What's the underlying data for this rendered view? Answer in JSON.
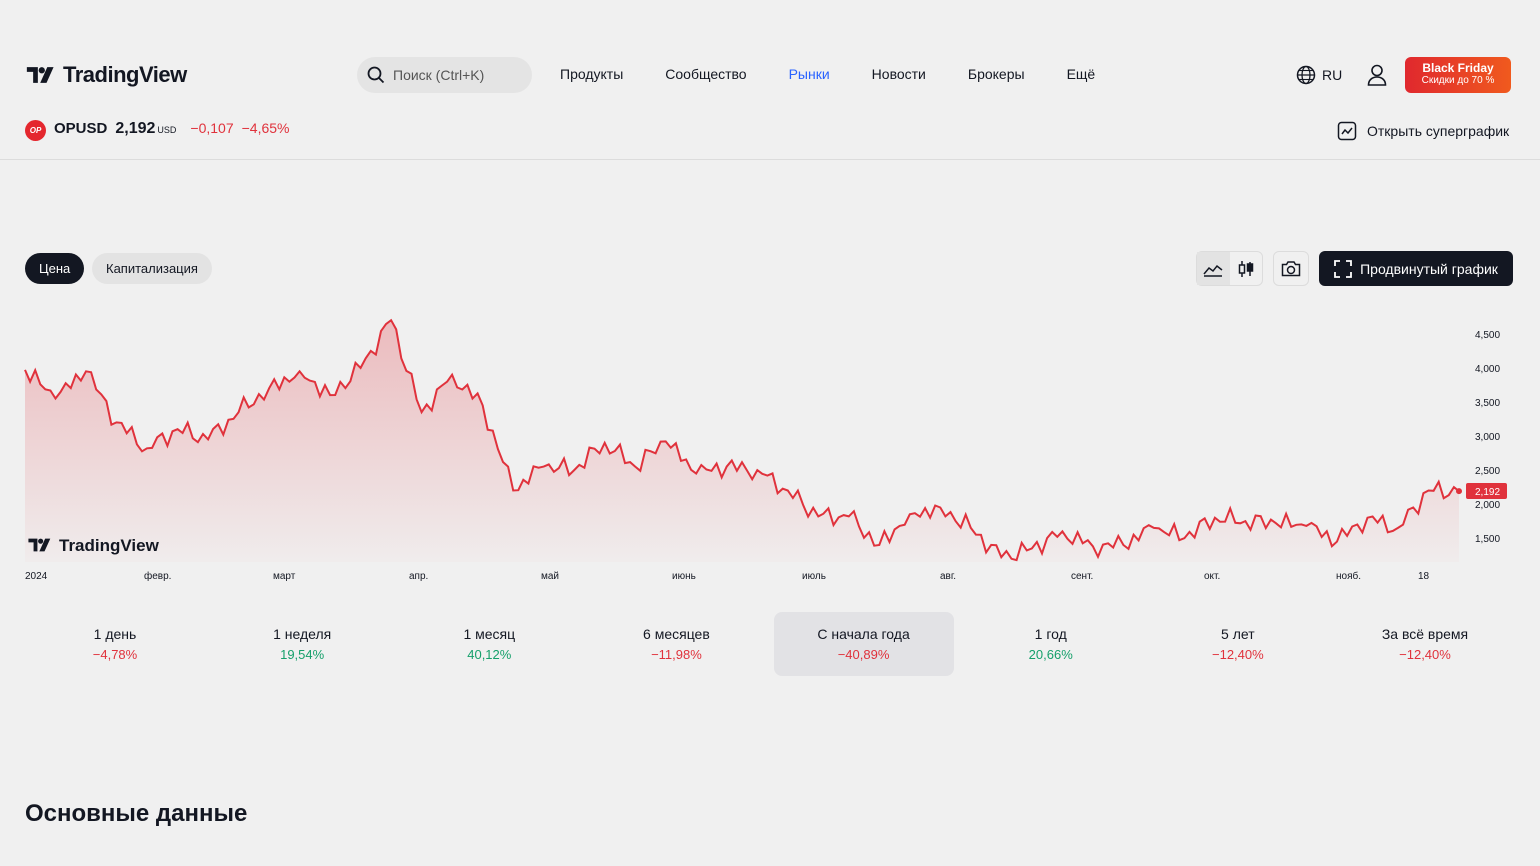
{
  "header": {
    "logo_text": "TradingView",
    "search_placeholder": "Поиск (Ctrl+K)",
    "nav": [
      "Продукты",
      "Сообщество",
      "Рынки",
      "Новости",
      "Брокеры",
      "Ещё"
    ],
    "active_nav": "Рынки",
    "language": "RU",
    "promo_title": "Black Friday",
    "promo_subtitle": "Скидки до 70 %"
  },
  "symbol": {
    "badge": "OP",
    "ticker": "OPUSD",
    "price": "2,192",
    "currency": "USD",
    "change_abs": "−0,107",
    "change_pct": "−4,65%",
    "open_supergraph": "Открыть суперграфик"
  },
  "chart_tabs": {
    "price": "Цена",
    "market_cap": "Капитализация"
  },
  "toolbar": {
    "advanced_chart": "Продвинутый график"
  },
  "chart_data": {
    "type": "area",
    "watermark": "TradingView",
    "x_ticks": [
      "2024",
      "февр.",
      "март",
      "апр.",
      "май",
      "июнь",
      "июль",
      "авг.",
      "сент.",
      "окт.",
      "нояб.",
      "18"
    ],
    "y_ticks": [
      "4,500",
      "4,000",
      "3,500",
      "3,000",
      "2,500",
      "2,000",
      "1,500"
    ],
    "ylim": [
      1.15,
      4.85
    ],
    "last_price_label": "2,192",
    "line_color": "#e0323c",
    "series": [
      {
        "x_weeks": [
          0,
          1,
          2,
          3,
          4,
          5,
          6,
          7,
          8,
          9,
          10,
          11,
          12,
          13,
          14,
          15,
          16,
          17,
          18,
          19,
          20,
          21,
          22,
          23,
          24,
          25,
          26,
          27,
          28,
          29,
          30,
          31,
          32,
          33,
          34,
          35,
          36,
          37,
          38,
          39,
          40,
          41,
          42,
          43,
          44,
          45,
          46,
          47
        ],
        "values": [
          3.97,
          3.55,
          3.95,
          3.2,
          2.82,
          3.1,
          2.95,
          3.35,
          3.7,
          3.95,
          3.6,
          4.0,
          4.7,
          3.35,
          3.9,
          3.45,
          2.2,
          2.55,
          2.5,
          2.9,
          2.55,
          2.92,
          2.45,
          2.55,
          2.5,
          2.2,
          1.82,
          1.82,
          1.4,
          1.85,
          1.95,
          1.65,
          1.22,
          1.35,
          1.6,
          1.38,
          1.4,
          1.65,
          1.5,
          1.8,
          1.75,
          1.72,
          1.68,
          1.45,
          1.8,
          1.65,
          2.2,
          2.19
        ]
      }
    ]
  },
  "periods": [
    {
      "label": "1 день",
      "value": "−4,78%",
      "dir": "neg"
    },
    {
      "label": "1 неделя",
      "value": "19,54%",
      "dir": "pos"
    },
    {
      "label": "1 месяц",
      "value": "40,12%",
      "dir": "pos"
    },
    {
      "label": "6 месяцев",
      "value": "−11,98%",
      "dir": "neg"
    },
    {
      "label": "С начала года",
      "value": "−40,89%",
      "dir": "neg",
      "selected": true
    },
    {
      "label": "1 год",
      "value": "20,66%",
      "dir": "pos"
    },
    {
      "label": "5 лет",
      "value": "−12,40%",
      "dir": "neg"
    },
    {
      "label": "За всё время",
      "value": "−12,40%",
      "dir": "neg"
    }
  ],
  "section_title": "Основные данные"
}
